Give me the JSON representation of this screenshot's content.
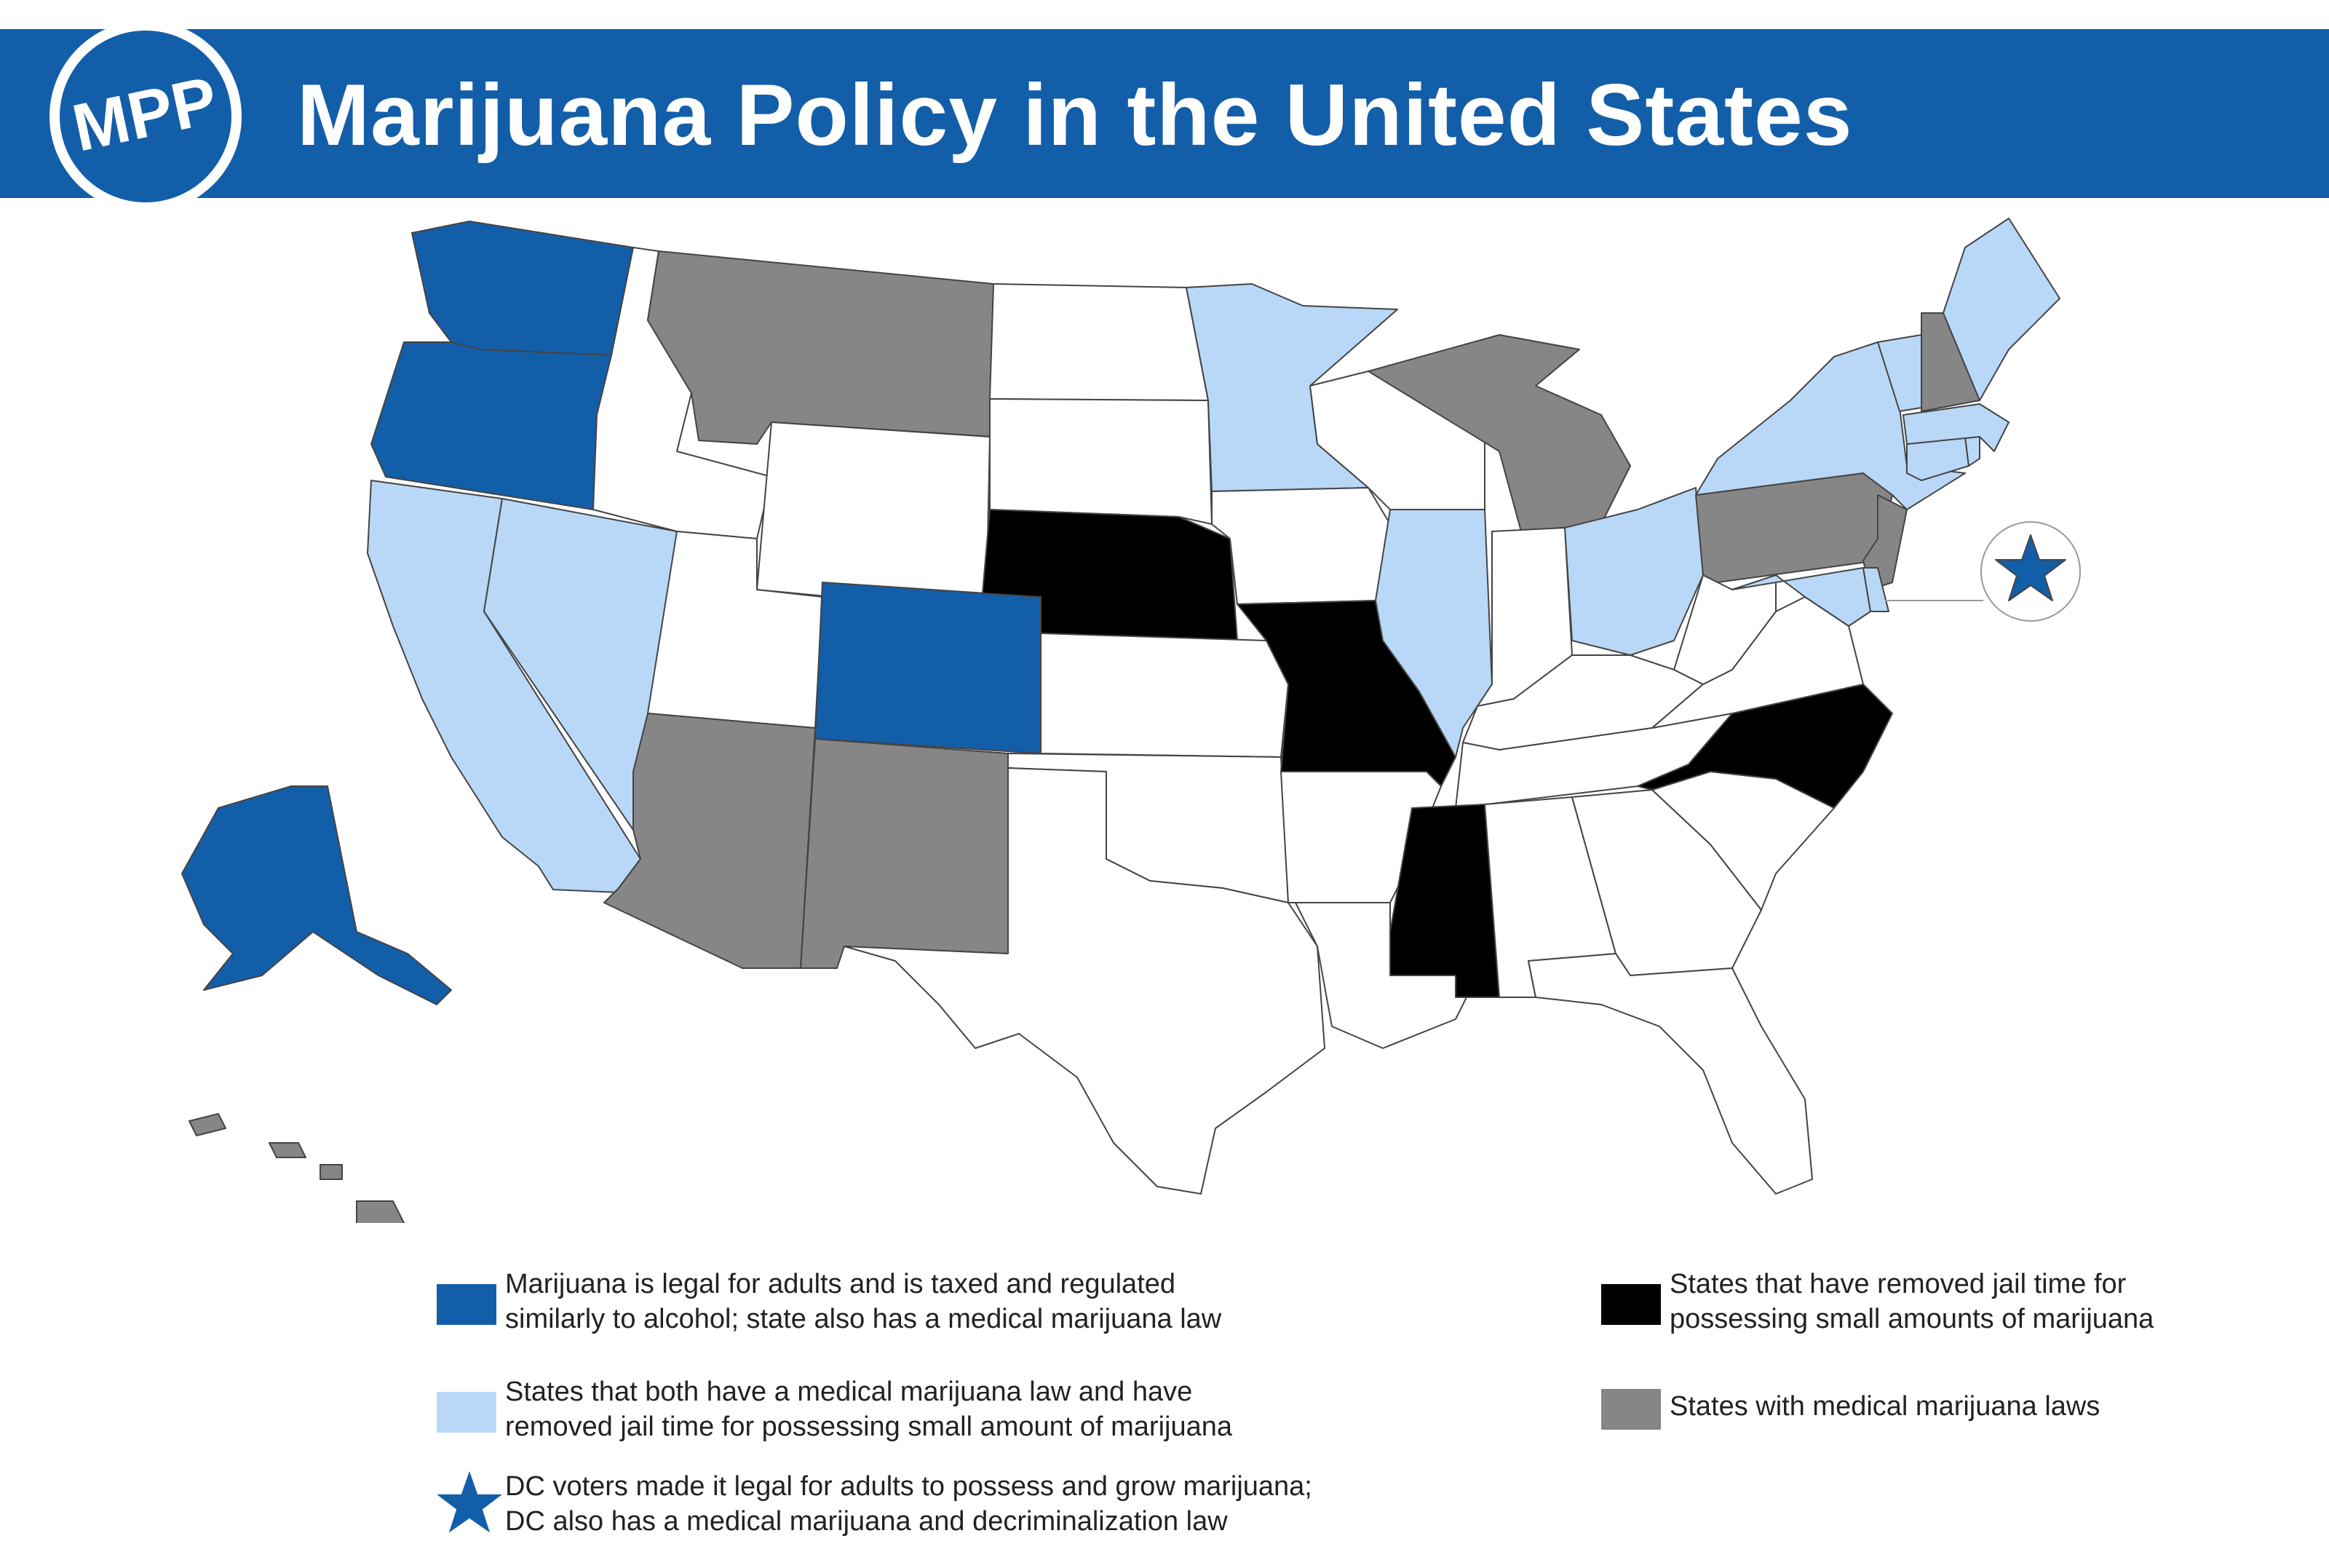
{
  "header": {
    "title": "Marijuana Policy in the United States",
    "logo_text": "MPP",
    "background_color": "#135ea9"
  },
  "colors": {
    "legal": "#135ea9",
    "medical_decrim": "#b9d8f7",
    "decrim": "#000000",
    "medical": "#868686",
    "none": "#ffffff"
  },
  "map": {
    "dc_marker": "star-icon",
    "states": {
      "WA": "legal",
      "OR": "legal",
      "AK": "legal",
      "CO": "legal",
      "CA": "medical_decrim",
      "NV": "medical_decrim",
      "MN": "medical_decrim",
      "IL": "medical_decrim",
      "OH": "medical_decrim",
      "NY": "medical_decrim",
      "VT": "medical_decrim",
      "ME": "medical_decrim",
      "MA": "medical_decrim",
      "RI": "medical_decrim",
      "CT": "medical_decrim",
      "MD": "medical_decrim",
      "DE": "medical_decrim",
      "NE": "decrim",
      "MO": "decrim",
      "MS": "decrim",
      "NC": "decrim",
      "MT": "medical",
      "AZ": "medical",
      "NM": "medical",
      "MI": "medical",
      "PA": "medical",
      "NJ": "medical",
      "NH": "medical",
      "HI": "medical"
    }
  },
  "legend": {
    "items": [
      {
        "category": "legal",
        "lines": [
          "Marijuana is legal for adults and is taxed and regulated",
          "similarly to alcohol; state also has a medical marijuana law"
        ]
      },
      {
        "category": "medical_decrim",
        "lines": [
          "States that both have a medical marijuana law and have",
          "removed jail time for possessing small amount of marijuana"
        ]
      },
      {
        "category": "dc",
        "lines": [
          "DC voters made it legal for adults to possess and grow marijuana;",
          "DC also has a medical marijuana and decriminalization law"
        ]
      },
      {
        "category": "decrim",
        "lines": [
          "States that have removed jail time for",
          "possessing small amounts of marijuana"
        ]
      },
      {
        "category": "medical",
        "lines": [
          "States with medical marijuana laws"
        ]
      }
    ]
  }
}
